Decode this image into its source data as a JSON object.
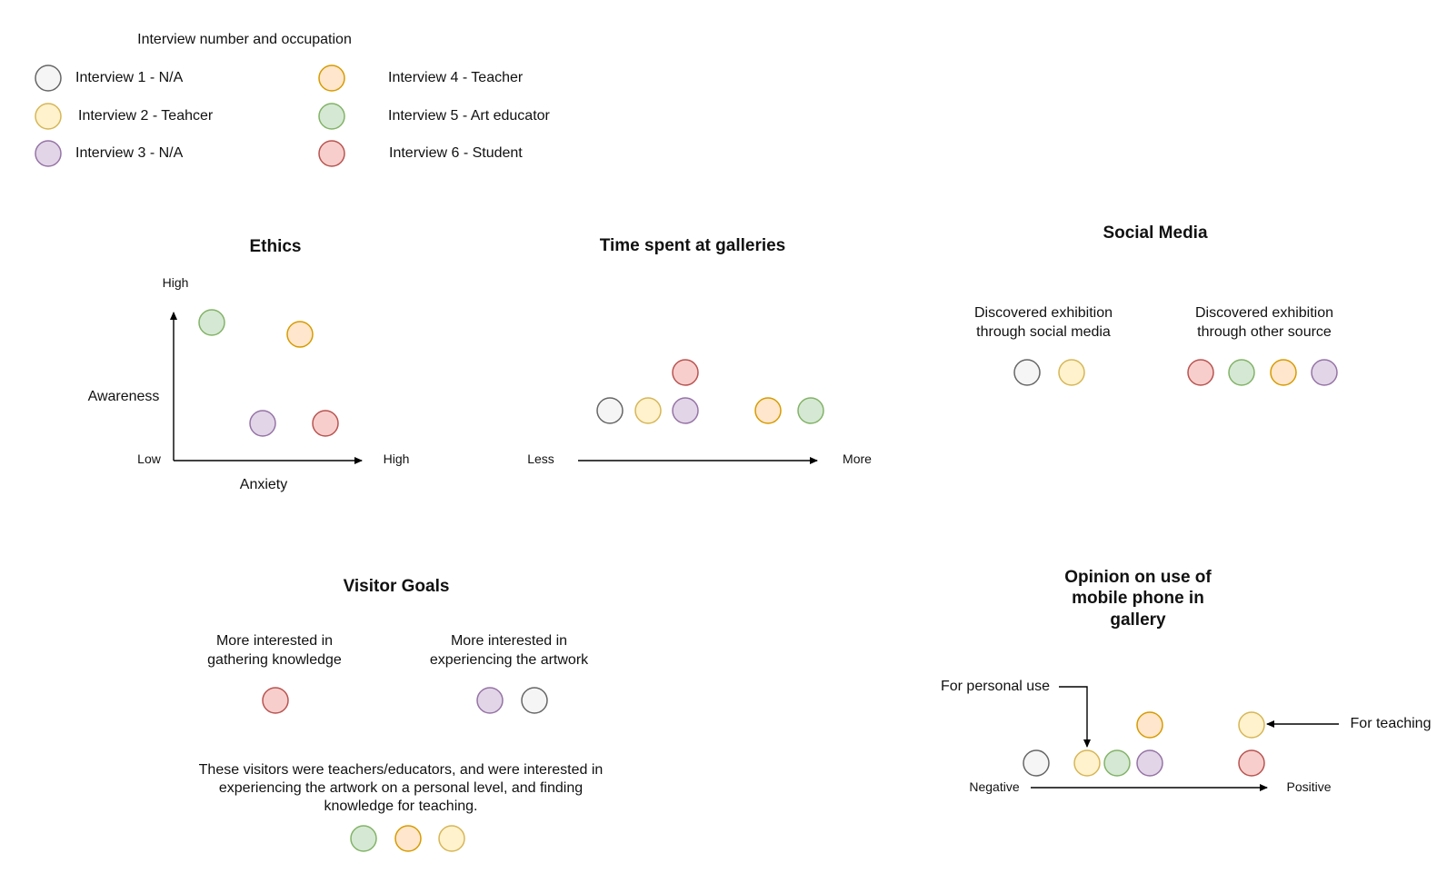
{
  "colors": {
    "interview_1": {
      "fill": "#f5f5f5",
      "stroke": "#666666"
    },
    "interview_2": {
      "fill": "#fff2cc",
      "stroke": "#d6b656"
    },
    "interview_3": {
      "fill": "#e1d5e7",
      "stroke": "#9673a6"
    },
    "interview_4": {
      "fill": "#ffe6cc",
      "stroke": "#d79b00"
    },
    "interview_5": {
      "fill": "#d5e8d4",
      "stroke": "#82b366"
    },
    "interview_6": {
      "fill": "#f8cecc",
      "stroke": "#b85450"
    }
  },
  "legend": {
    "title": "Interview number and occupation",
    "items": [
      {
        "id": "interview_1",
        "label": "Interview 1 - N/A"
      },
      {
        "id": "interview_2",
        "label": "Interview 2 - Teahcer"
      },
      {
        "id": "interview_3",
        "label": "Interview 3 - N/A"
      },
      {
        "id": "interview_4",
        "label": "Interview 4 - Teacher"
      },
      {
        "id": "interview_5",
        "label": "Interview 5 - Art educator"
      },
      {
        "id": "interview_6",
        "label": "Interview 6 - Student"
      }
    ]
  },
  "ethics": {
    "title": "Ethics",
    "y_high": "High",
    "y_label": "Awareness",
    "origin_low": "Low",
    "x_high": "High",
    "x_label": "Anxiety"
  },
  "time_spent": {
    "title": "Time spent at galleries",
    "less": "Less",
    "more": "More"
  },
  "social_media": {
    "title": "Social Media",
    "group_social_line1": "Discovered exhibition",
    "group_social_line2": "through social media",
    "group_other_line1": "Discovered exhibition",
    "group_other_line2": "through other source"
  },
  "visitor_goals": {
    "title": "Visitor Goals",
    "knowledge_line1": "More interested in",
    "knowledge_line2": "gathering knowledge",
    "artwork_line1": "More interested in",
    "artwork_line2": "experiencing the artwork",
    "note_line1": "These visitors were teachers/educators, and were interested in",
    "note_line2": "experiencing the artwork on a personal level, and finding",
    "note_line3": "knowledge for teaching."
  },
  "phone_opinion": {
    "title_line1": "Opinion on use of",
    "title_line2": "mobile phone in",
    "title_line3": "gallery",
    "personal_use": "For personal use",
    "for_teaching": "For teaching",
    "negative": "Negative",
    "positive": "Positive"
  }
}
